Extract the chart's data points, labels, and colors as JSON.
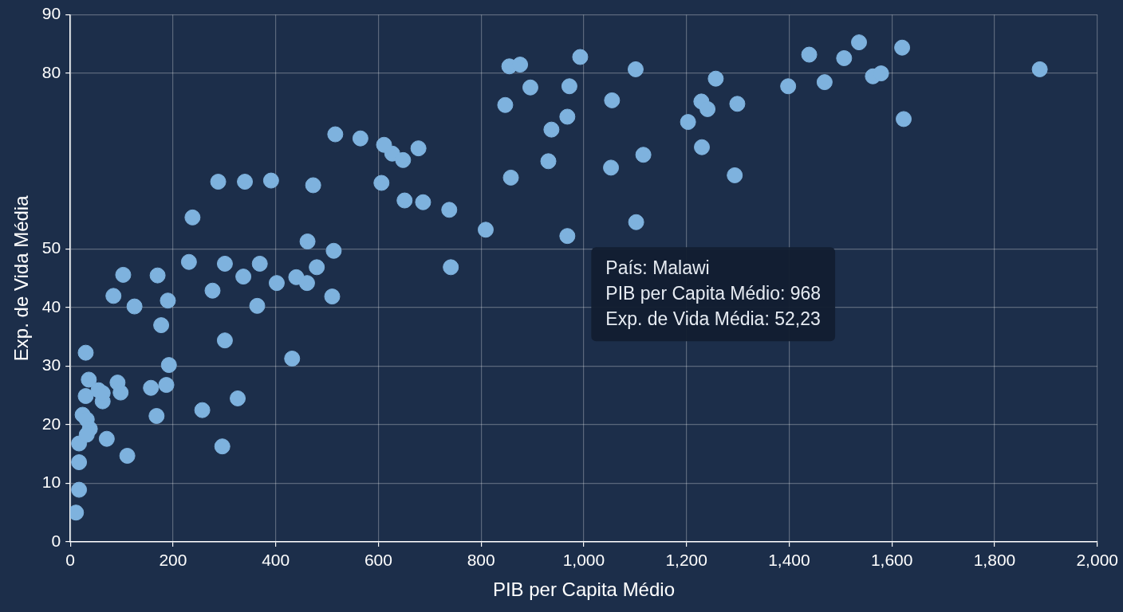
{
  "chart_data": {
    "type": "scatter",
    "xlabel": "PIB per Capita Médio",
    "ylabel": "Exp. de Vida Média",
    "xlim": [
      0,
      2000
    ],
    "xticks": [
      0,
      {
        "value": 200,
        "label": "200"
      },
      {
        "value": 400,
        "label": "400"
      },
      {
        "value": 600,
        "label": "600"
      },
      {
        "value": 800,
        "label": "800"
      },
      {
        "value": 1000,
        "label": "1,000"
      },
      {
        "value": 1200,
        "label": "1,200"
      },
      {
        "value": 1400,
        "label": "1,400"
      },
      {
        "value": 1600,
        "label": "1,600"
      },
      {
        "value": 1800,
        "label": "1,800"
      },
      {
        "value": 2000,
        "label": "2,000"
      }
    ],
    "ylim": [
      0,
      90
    ],
    "yticks": [
      0,
      10,
      20,
      30,
      40,
      50,
      80,
      90
    ],
    "grid": true,
    "legend": false,
    "marker": "circle",
    "series": [
      {
        "color": "#7eb2de",
        "x": [
          11,
          17,
          17,
          17,
          24,
          32,
          38,
          32,
          30,
          30,
          36,
          55,
          63,
          63,
          71,
          92,
          98,
          111,
          84,
          103,
          125,
          157,
          168,
          170,
          177,
          187,
          190,
          192,
          231,
          238,
          257,
          277,
          288,
          296,
          301,
          301,
          326,
          337,
          340,
          364,
          369,
          391,
          402,
          432,
          440,
          461,
          462,
          473,
          480,
          510,
          513,
          516,
          565,
          606,
          611,
          627,
          648,
          651,
          678,
          687,
          738,
          741,
          809,
          847,
          855,
          858,
          876,
          896,
          931,
          937,
          968,
          972,
          993,
          1053,
          1055,
          1101,
          1102,
          1116,
          1203,
          1229,
          1230,
          1241,
          1257,
          1294,
          1299,
          1398,
          1439,
          1469,
          1507,
          1536,
          1563,
          1579,
          1620,
          1623,
          1888,
          968
        ],
        "values": [
          5,
          8.9,
          13.6,
          16.8,
          21.7,
          20.9,
          19.3,
          18.3,
          24.9,
          32.3,
          27.7,
          25.9,
          24,
          25.4,
          17.6,
          27.2,
          25.5,
          14.7,
          42,
          45.6,
          40.2,
          26.3,
          21.5,
          45.5,
          37,
          26.8,
          41.2,
          30.2,
          47.8,
          55.4,
          22.5,
          42.9,
          61.5,
          16.3,
          47.5,
          34.4,
          24.5,
          45.3,
          61.5,
          40.3,
          47.5,
          61.7,
          44.2,
          31.3,
          45.2,
          44.2,
          51.3,
          60.9,
          46.9,
          41.9,
          49.7,
          69.6,
          68.9,
          61.3,
          67.8,
          66.3,
          65.2,
          58.3,
          67.2,
          58,
          56.7,
          46.9,
          53.3,
          74.6,
          81.2,
          62.2,
          81.5,
          77.6,
          65,
          70.4,
          72.6,
          77.8,
          82.8,
          63.9,
          75.4,
          80.7,
          54.6,
          66.1,
          71.7,
          75.2,
          67.4,
          73.9,
          79.1,
          62.6,
          74.8,
          77.8,
          83.2,
          78.5,
          82.6,
          85.3,
          79.5,
          80,
          84.4,
          72.2,
          80.7,
          52.23
        ]
      }
    ],
    "annotations": [
      {
        "text": "País: Malawi\nPIB per Capita Médio: 968\nExp. de Vida Média: 52,23",
        "x": 968,
        "y": 52.23
      }
    ]
  }
}
